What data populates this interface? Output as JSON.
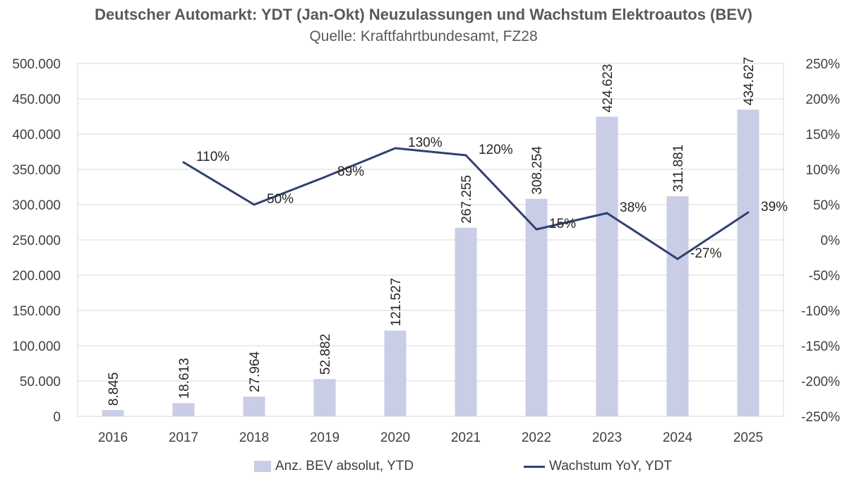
{
  "chart_data": {
    "type": "bar+line",
    "title": "Deutscher Automarkt: YDT (Jan-Okt) Neuzulassungen und Wachstum Elektroautos (BEV)",
    "subtitle": "Quelle: Kraftfahrtbundesamt, FZ28",
    "categories": [
      "2016",
      "2017",
      "2018",
      "2019",
      "2020",
      "2021",
      "2022",
      "2023",
      "2024",
      "2025"
    ],
    "bar_series": {
      "name": "Anz. BEV absolut, YTD",
      "values": [
        8845,
        18613,
        27964,
        52882,
        121527,
        267255,
        308254,
        424623,
        311881,
        434627
      ],
      "labels": [
        "8.845",
        "18.613",
        "27.964",
        "52.882",
        "121.527",
        "267.255",
        "308.254",
        "424.623",
        "311.881",
        "434.627"
      ],
      "color": "#c9cee6"
    },
    "line_series": {
      "name": "Wachstum YoY, YDT",
      "values": [
        null,
        110,
        50,
        89,
        130,
        120,
        15,
        38,
        -27,
        39
      ],
      "labels": [
        null,
        "110%",
        "50%",
        "89%",
        "130%",
        "120%",
        "15%",
        "38%",
        "-27%",
        "39%"
      ],
      "color": "#2f4170"
    },
    "left_axis": {
      "range": [
        0,
        500000
      ],
      "ticks": [
        "0",
        "50.000",
        "100.000",
        "150.000",
        "200.000",
        "250.000",
        "300.000",
        "350.000",
        "400.000",
        "450.000",
        "500.000"
      ]
    },
    "right_axis": {
      "range": [
        -250,
        250
      ],
      "ticks": [
        "-250%",
        "-200%",
        "-150%",
        "-100%",
        "-50%",
        "0%",
        "50%",
        "100%",
        "150%",
        "200%",
        "250%"
      ]
    },
    "grid": true,
    "legend_position": "bottom"
  }
}
